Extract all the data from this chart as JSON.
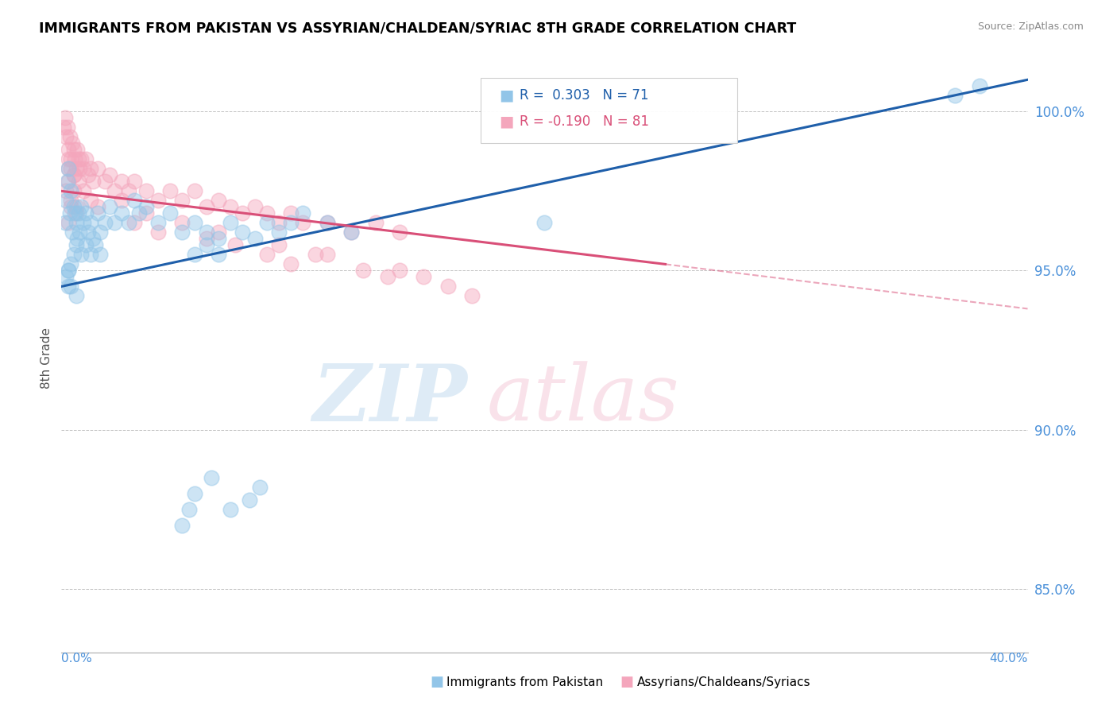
{
  "title": "IMMIGRANTS FROM PAKISTAN VS ASSYRIAN/CHALDEAN/SYRIAC 8TH GRADE CORRELATION CHART",
  "source": "Source: ZipAtlas.com",
  "ylabel": "8th Grade",
  "xlim": [
    0.0,
    40.0
  ],
  "ylim": [
    83.0,
    101.5
  ],
  "yticks": [
    85.0,
    90.0,
    95.0,
    100.0
  ],
  "ytick_labels": [
    "85.0%",
    "90.0%",
    "95.0%",
    "100.0%"
  ],
  "blue_color": "#92c5e8",
  "pink_color": "#f4a6bc",
  "blue_line_color": "#1f5faa",
  "pink_line_color": "#d94f78",
  "blue_scatter_x": [
    0.15,
    0.2,
    0.25,
    0.3,
    0.35,
    0.4,
    0.45,
    0.5,
    0.55,
    0.6,
    0.65,
    0.7,
    0.75,
    0.8,
    0.9,
    1.0,
    1.1,
    1.2,
    1.3,
    1.5,
    1.6,
    1.8,
    2.0,
    2.2,
    2.5,
    2.8,
    3.0,
    3.2,
    3.5,
    4.0,
    4.5,
    5.0,
    5.5,
    6.0,
    6.5,
    7.0,
    7.5,
    8.0,
    8.5,
    9.0,
    9.5,
    10.0,
    11.0,
    12.0,
    5.5,
    6.2,
    7.0,
    7.8,
    8.2,
    5.0,
    5.3,
    0.5,
    0.6,
    0.8,
    1.0,
    1.2,
    1.4,
    1.6,
    0.3,
    0.4,
    0.2,
    0.3,
    5.5,
    6.0,
    6.5,
    37.0,
    38.0,
    20.0,
    0.6,
    0.4,
    0.3
  ],
  "blue_scatter_y": [
    96.5,
    97.2,
    97.8,
    98.2,
    96.8,
    97.5,
    96.2,
    97.0,
    96.8,
    96.5,
    96.0,
    96.8,
    96.2,
    97.0,
    96.5,
    96.8,
    96.2,
    96.5,
    96.0,
    96.8,
    96.2,
    96.5,
    97.0,
    96.5,
    96.8,
    96.5,
    97.2,
    96.8,
    97.0,
    96.5,
    96.8,
    96.2,
    96.5,
    96.2,
    96.0,
    96.5,
    96.2,
    96.0,
    96.5,
    96.2,
    96.5,
    96.8,
    96.5,
    96.2,
    88.0,
    88.5,
    87.5,
    87.8,
    88.2,
    87.0,
    87.5,
    95.5,
    95.8,
    95.5,
    95.8,
    95.5,
    95.8,
    95.5,
    94.5,
    95.2,
    94.8,
    95.0,
    95.5,
    95.8,
    95.5,
    100.5,
    100.8,
    96.5,
    94.2,
    94.5,
    95.0
  ],
  "pink_scatter_x": [
    0.1,
    0.15,
    0.2,
    0.25,
    0.3,
    0.35,
    0.4,
    0.45,
    0.5,
    0.55,
    0.6,
    0.65,
    0.7,
    0.75,
    0.8,
    0.9,
    1.0,
    1.1,
    1.2,
    1.3,
    1.5,
    1.8,
    2.0,
    2.2,
    2.5,
    2.8,
    3.0,
    3.5,
    4.0,
    4.5,
    5.0,
    5.5,
    6.0,
    6.5,
    7.0,
    7.5,
    8.0,
    8.5,
    9.0,
    9.5,
    10.0,
    11.0,
    12.0,
    13.0,
    14.0,
    0.3,
    0.5,
    0.7,
    0.9,
    1.2,
    1.5,
    0.2,
    0.3,
    0.4,
    0.5,
    0.6,
    0.3,
    0.4,
    0.5,
    3.0,
    3.5,
    4.0,
    5.0,
    6.5,
    9.0,
    11.0,
    2.5,
    0.6,
    0.4,
    0.3,
    6.0,
    7.2,
    8.5,
    9.5,
    10.5,
    12.5,
    13.5,
    14.0,
    15.0,
    16.0,
    17.0
  ],
  "pink_scatter_y": [
    99.5,
    99.8,
    99.2,
    99.5,
    98.8,
    99.2,
    98.5,
    99.0,
    98.8,
    98.5,
    98.2,
    98.8,
    98.5,
    98.2,
    98.5,
    98.2,
    98.5,
    98.0,
    98.2,
    97.8,
    98.2,
    97.8,
    98.0,
    97.5,
    97.8,
    97.5,
    97.8,
    97.5,
    97.2,
    97.5,
    97.2,
    97.5,
    97.0,
    97.2,
    97.0,
    96.8,
    97.0,
    96.8,
    96.5,
    96.8,
    96.5,
    96.5,
    96.2,
    96.5,
    96.2,
    98.2,
    98.0,
    97.8,
    97.5,
    97.2,
    97.0,
    97.5,
    97.8,
    97.2,
    97.5,
    97.0,
    98.5,
    98.2,
    98.0,
    96.5,
    96.8,
    96.2,
    96.5,
    96.2,
    95.8,
    95.5,
    97.2,
    96.8,
    97.0,
    96.5,
    96.0,
    95.8,
    95.5,
    95.2,
    95.5,
    95.0,
    94.8,
    95.0,
    94.8,
    94.5,
    94.2
  ],
  "blue_line_x0": 0.0,
  "blue_line_x1": 40.0,
  "blue_line_y0": 94.5,
  "blue_line_y1": 101.0,
  "pink_solid_x0": 0.0,
  "pink_solid_x1": 25.0,
  "pink_solid_y0": 97.5,
  "pink_solid_y1": 95.2,
  "pink_dash_x0": 25.0,
  "pink_dash_x1": 40.0,
  "pink_dash_y0": 95.2,
  "pink_dash_y1": 93.8
}
